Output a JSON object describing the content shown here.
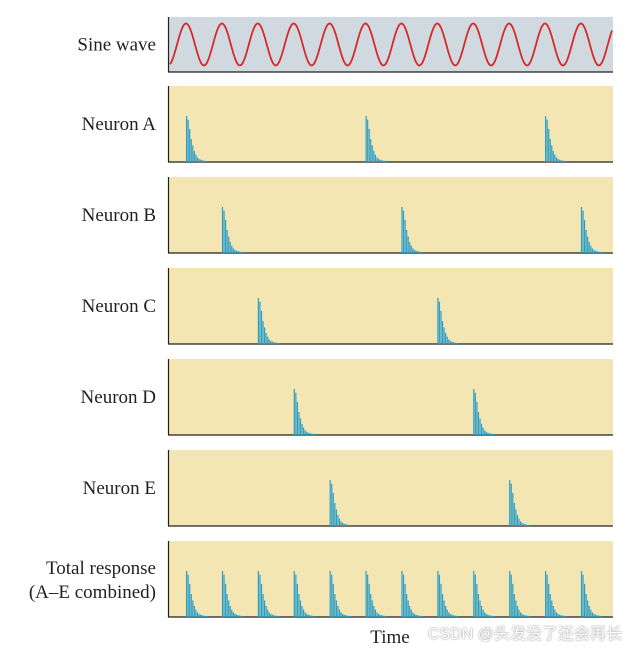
{
  "chart_data": {
    "type": "raster",
    "xlabel": "Time",
    "colors": {
      "sine_panel_bg": "#d0d8e0",
      "panel_bg": "#f3e6b2",
      "sine_line": "#d62a2a",
      "spike": "#2a9ec8",
      "axis": "#231f20"
    },
    "sine": {
      "label": "Sine wave",
      "cycles": 12,
      "x_range": [
        0,
        12
      ]
    },
    "rows": [
      {
        "label": "Neuron A",
        "burst_onsets": [
          0,
          5,
          10
        ]
      },
      {
        "label": "Neuron B",
        "burst_onsets": [
          1,
          6,
          11
        ]
      },
      {
        "label": "Neuron C",
        "burst_onsets": [
          2,
          7
        ]
      },
      {
        "label": "Neuron D",
        "burst_onsets": [
          3,
          8
        ]
      },
      {
        "label": "Neuron E",
        "burst_onsets": [
          4,
          9
        ]
      },
      {
        "label_lines": [
          "Total response",
          "(A–E combined)"
        ],
        "burst_onsets": [
          0,
          1,
          2,
          3,
          4,
          5,
          6,
          7,
          8,
          9,
          10,
          11
        ]
      }
    ],
    "burst_profile": [
      1.0,
      0.92,
      0.72,
      0.5,
      0.36,
      0.24,
      0.16,
      0.1,
      0.07,
      0.05,
      0.04,
      0.03,
      0.025,
      0.02
    ]
  },
  "watermark": "CSDN @头发没了还会再长"
}
